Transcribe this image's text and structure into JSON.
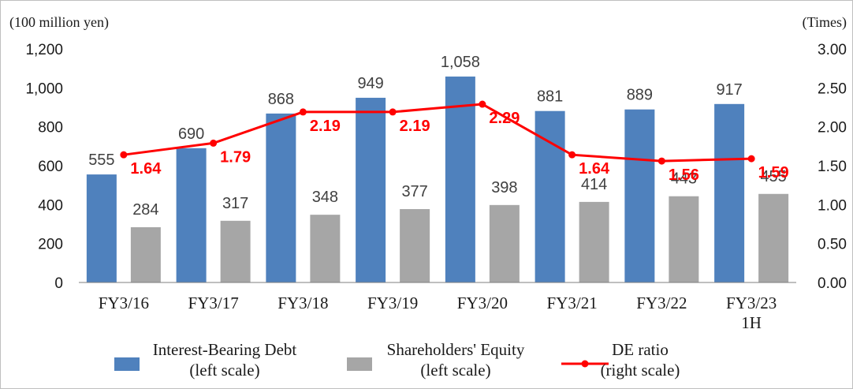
{
  "chart_data": {
    "type": "bar",
    "left_axis_unit": "(100 million yen)",
    "right_axis_unit": "(Times)",
    "categories": [
      [
        "FY3/16"
      ],
      [
        "FY3/17"
      ],
      [
        "FY3/18"
      ],
      [
        "FY3/19"
      ],
      [
        "FY3/20"
      ],
      [
        "FY3/21"
      ],
      [
        "FY3/22"
      ],
      [
        "FY3/23",
        "1H"
      ]
    ],
    "left_axis": {
      "ylim": [
        0,
        1200
      ],
      "ticks": [
        0,
        200,
        400,
        600,
        800,
        1000,
        1200
      ],
      "tick_labels": [
        "0",
        "200",
        "400",
        "600",
        "800",
        "1,000",
        "1,200"
      ]
    },
    "right_axis": {
      "ylim": [
        0,
        3
      ],
      "ticks": [
        0,
        0.5,
        1,
        1.5,
        2,
        2.5,
        3
      ],
      "tick_labels": [
        "0.00",
        "0.50",
        "1.00",
        "1.50",
        "2.00",
        "2.50",
        "3.00"
      ]
    },
    "series": [
      {
        "name": "Interest-Bearing Debt",
        "name_line2": "(left scale)",
        "kind": "bar",
        "axis": "left",
        "color": "#4f81bd",
        "values": [
          555,
          690,
          868,
          949,
          1058,
          881,
          889,
          917
        ],
        "labels": [
          "555",
          "690",
          "868",
          "949",
          "1,058",
          "881",
          "889",
          "917"
        ]
      },
      {
        "name": "Shareholders' Equity",
        "name_line2": "(left scale)",
        "kind": "bar",
        "axis": "left",
        "color": "#a6a6a6",
        "values": [
          284,
          317,
          348,
          377,
          398,
          414,
          443,
          455
        ],
        "labels": [
          "284",
          "317",
          "348",
          "377",
          "398",
          "414",
          "443",
          "455"
        ]
      },
      {
        "name": "DE ratio",
        "name_line2": "(right scale)",
        "kind": "line",
        "axis": "right",
        "color": "#ff0000",
        "values": [
          1.64,
          1.79,
          2.19,
          2.19,
          2.29,
          1.64,
          1.56,
          1.59
        ],
        "labels": [
          "1.64",
          "1.79",
          "2.19",
          "2.19",
          "2.29",
          "1.64",
          "1.56",
          "1.59"
        ]
      }
    ],
    "grid": false,
    "legend_position": "bottom"
  }
}
